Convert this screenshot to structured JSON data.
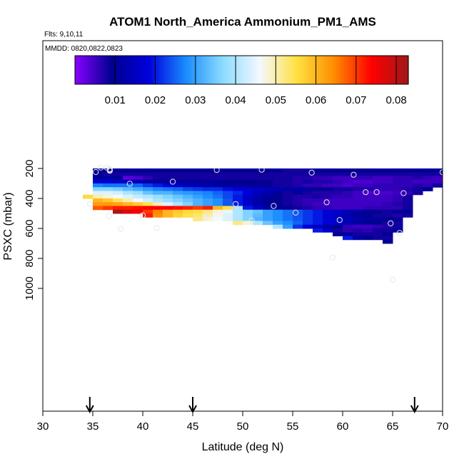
{
  "chart_data": {
    "type": "heatmap",
    "title": "ATOM1 North_America Ammonium_PM1_AMS",
    "flights_label": "Flts: 9,10,11",
    "dates_label": "MMDD: 0820,0822,0823",
    "xlabel": "Latitude (deg N)",
    "ylabel": "PSXC (mbar)",
    "xlim": [
      30,
      70
    ],
    "ylim": [
      1000,
      50
    ],
    "y_reversed": true,
    "xticks": [
      "30",
      "35",
      "40",
      "45",
      "50",
      "55",
      "60",
      "65",
      "70"
    ],
    "yticks": [
      "200",
      "400",
      "600",
      "800",
      "1000"
    ],
    "colorbar": {
      "range": [
        0.0,
        0.083
      ],
      "ticks": [
        "0.01",
        "0.02",
        "0.03",
        "0.04",
        "0.05",
        "0.06",
        "0.07",
        "0.08"
      ],
      "colormap": [
        "#8800ff",
        "#000090",
        "#0000dd",
        "#1a8cff",
        "#8cdcff",
        "#f5f8ff",
        "#ffe040",
        "#ff8c00",
        "#ff0000",
        "#a01818"
      ]
    },
    "grid": false,
    "cell_size": {
      "lat_deg": 1.0,
      "pressure_mbar": 25
    },
    "rows": [
      {
        "p": 212.5,
        "lat0": 35,
        "values": [
          0.01,
          0.01,
          0.01,
          0.01,
          0.01,
          0.01,
          0.01,
          0.01,
          0.01,
          0.01,
          0.01,
          0.01,
          0.01,
          0.01,
          0.01,
          0.01,
          0.01,
          0.01,
          0.01,
          0.008,
          0.008,
          0.008,
          0.01,
          0.01,
          0.01,
          0.01,
          0.01,
          0.01,
          0.01,
          0.01,
          0.01,
          0.01,
          0.01,
          0.01,
          0.01
        ]
      },
      {
        "p": 237.5,
        "lat0": 35,
        "values": [
          0.009,
          0.008,
          0.008,
          0.008,
          0.008,
          0.008,
          0.008,
          0.008,
          0.008,
          0.008,
          0.008,
          0.008,
          0.008,
          0.008,
          0.008,
          0.008,
          0.008,
          0.008,
          0.008,
          0.008,
          0.008,
          0.008,
          0.008,
          0.008,
          0.008,
          0.008,
          0.008,
          0.008,
          0.008,
          0.008,
          0.008,
          0.008,
          0.008,
          0.008,
          0.008
        ]
      },
      {
        "p": 262.5,
        "lat0": 35,
        "values": [
          0.01,
          0.012,
          0.01,
          0.003,
          0.004,
          0.006,
          0.008,
          0.008,
          0.008,
          0.008,
          0.008,
          0.008,
          0.008,
          0.008,
          0.008,
          0.008,
          0.008,
          0.008,
          0.008,
          0.008,
          0.007,
          0.007,
          0.006,
          0.006,
          0.005,
          0.005,
          0.006,
          0.006,
          0.005,
          0.005,
          0.006,
          0.006,
          0.007,
          0.006,
          0.005
        ]
      },
      {
        "p": 287.5,
        "lat0": 35,
        "values": [
          0.018,
          0.017,
          0.016,
          0.015,
          0.014,
          0.012,
          0.01,
          0.01,
          0.01,
          0.011,
          0.011,
          0.011,
          0.011,
          0.01,
          0.01,
          0.01,
          0.009,
          0.009,
          0.008,
          0.008,
          0.007,
          0.008,
          0.007,
          0.007,
          0.006,
          0.005,
          0.004,
          0.004,
          0.005,
          0.005,
          0.006,
          0.006,
          0.005,
          0.005,
          0.005
        ]
      },
      {
        "p": 312.5,
        "lat0": 35,
        "values": [
          0.027,
          0.026,
          0.026,
          0.026,
          0.025,
          0.022,
          0.02,
          0.018,
          0.016,
          0.014,
          0.013,
          0.012,
          0.011,
          0.01,
          0.009,
          0.009,
          0.009,
          0.009,
          0.008,
          0.008,
          0.007,
          0.006,
          0.006,
          0.005,
          0.005,
          0.004,
          0.005,
          0.005,
          0.006,
          0.006,
          0.006,
          0.006,
          0.007,
          0.006,
          0.008
        ]
      },
      {
        "p": 337.5,
        "lat0": 35,
        "values": [
          0.036,
          0.036,
          0.035,
          0.033,
          0.031,
          0.029,
          0.027,
          0.026,
          0.025,
          0.023,
          0.022,
          0.021,
          0.021,
          0.019,
          0.018,
          0.017,
          0.016,
          0.015,
          0.014,
          0.012,
          0.012,
          0.011,
          0.009,
          0.009,
          0.008,
          0.008,
          0.007,
          0.007,
          0.006,
          0.006,
          0.006,
          0.007,
          0.008,
          0.01
        ]
      },
      {
        "p": 362.5,
        "lat0": 35,
        "values": [
          0.044,
          0.044,
          0.043,
          0.04,
          0.038,
          0.034,
          0.032,
          0.032,
          0.03,
          0.029,
          0.028,
          0.027,
          0.025,
          0.023,
          0.021,
          0.018,
          0.014,
          0.012,
          0.01,
          0.008,
          0.009,
          0.008,
          0.007,
          0.007,
          0.007,
          0.006,
          0.005,
          0.004,
          0.004,
          0.004,
          0.005,
          0.006,
          0.008
        ]
      },
      {
        "p": 387.5,
        "lat0": 34,
        "values": [
          0.056,
          0.05,
          0.048,
          0.046,
          0.044,
          0.042,
          0.04,
          0.038,
          0.036,
          0.034,
          0.032,
          0.03,
          0.028,
          0.026,
          0.023,
          0.02,
          0.016,
          0.013,
          0.011,
          0.009,
          0.008,
          0.007,
          0.007,
          0.008,
          0.007,
          0.006,
          0.006,
          0.005,
          0.005,
          0.005,
          0.005,
          0.006,
          0.008
        ]
      },
      {
        "p": 412.5,
        "lat0": 35,
        "values": [
          0.06,
          0.058,
          0.054,
          0.05,
          0.046,
          0.043,
          0.04,
          0.038,
          0.036,
          0.034,
          0.032,
          0.03,
          0.028,
          0.024,
          0.02,
          0.016,
          0.012,
          0.01,
          0.009,
          0.008,
          0.007,
          0.006,
          0.006,
          0.005,
          0.005,
          0.005,
          0.005,
          0.005,
          0.005,
          0.005,
          0.006,
          0.008
        ]
      },
      {
        "p": 437.5,
        "lat0": 35,
        "values": [
          0.063,
          0.063,
          0.062,
          0.06,
          0.058,
          0.055,
          0.05,
          0.044,
          0.04,
          0.036,
          0.032,
          0.03,
          0.028,
          0.024,
          0.02,
          0.016,
          0.012,
          0.01,
          0.009,
          0.008,
          0.007,
          0.006,
          0.005,
          0.005,
          0.005,
          0.005,
          0.005,
          0.005,
          0.005,
          0.006,
          0.007,
          0.008
        ]
      },
      {
        "p": 462.5,
        "lat0": 35,
        "values": [
          0.068,
          0.07,
          0.072,
          0.072,
          0.073,
          0.074,
          0.074,
          0.074,
          0.073,
          0.072,
          0.07,
          0.072,
          0.06,
          0.055,
          0.04,
          0.02,
          0.016,
          0.012,
          0.01,
          0.009,
          0.008,
          0.007,
          0.006,
          0.006,
          0.005,
          0.005,
          0.005,
          0.006,
          0.006,
          0.006,
          0.006,
          0.008
        ]
      },
      {
        "p": 487.5,
        "lat0": 37,
        "values": [
          0.082,
          0.077,
          0.075,
          0.07,
          0.065,
          0.06,
          0.058,
          0.056,
          0.055,
          0.052,
          0.048,
          0.045,
          0.04,
          0.036,
          0.034,
          0.03,
          0.028,
          0.026,
          0.024,
          0.022,
          0.02,
          0.018,
          0.016,
          0.014,
          0.012,
          0.01,
          0.009,
          0.008,
          0.009,
          0.01
        ]
      },
      {
        "p": 512.5,
        "lat0": 40,
        "values": [
          0.072,
          0.064,
          0.06,
          0.057,
          0.055,
          0.053,
          0.05,
          0.047,
          0.044,
          0.04,
          0.036,
          0.033,
          0.03,
          0.028,
          0.026,
          0.024,
          0.022,
          0.02,
          0.017,
          0.015,
          0.012,
          0.011,
          0.01,
          0.008,
          0.008,
          0.007,
          0.008
        ]
      },
      {
        "p": 537.5,
        "lat0": 45,
        "values": [
          0.052,
          0.048,
          0.046,
          0.044,
          0.04,
          0.036,
          0.032,
          0.03,
          0.028,
          0.026,
          0.024,
          0.022,
          0.02,
          0.018,
          0.016,
          0.014,
          0.012,
          0.011,
          0.01,
          0.009,
          0.009
        ]
      },
      {
        "p": 562.5,
        "lat0": 49,
        "values": [
          0.052,
          0.048,
          0.04,
          0.034,
          0.03,
          0.028,
          0.025,
          0.022,
          0.02,
          0.018,
          0.016,
          0.013,
          0.011,
          0.01,
          0.009,
          0.008,
          0.008
        ]
      },
      {
        "p": 587.5,
        "lat0": 53,
        "values": [
          0.04,
          0.03,
          0.022,
          0.018,
          0.015,
          0.012,
          0.01,
          0.006,
          0.005,
          0.005,
          0.006,
          0.007,
          0.008
        ]
      },
      {
        "p": 612.5,
        "lat0": 57,
        "values": [
          0.02,
          0.016,
          0.008,
          0.006,
          0.007,
          0.006,
          0.008,
          0.008,
          0.01
        ]
      },
      {
        "p": 637.5,
        "lat0": 59,
        "values": [
          0.01,
          0.01,
          0.008,
          0.008,
          0.008,
          0.009
        ]
      },
      {
        "p": 662.5,
        "lat0": 60,
        "values": [
          0.02,
          0.012,
          0.01,
          0.008,
          0.008
        ]
      },
      {
        "p": 687.5,
        "lat0": 64,
        "values": [
          0.01
        ]
      }
    ],
    "flight_points": [
      {
        "lat": 35.3,
        "p": 224
      },
      {
        "lat": 35.8,
        "p": 194
      },
      {
        "lat": 36.4,
        "p": 194
      },
      {
        "lat": 36.7,
        "p": 204
      },
      {
        "lat": 36.7,
        "p": 210
      },
      {
        "lat": 36.7,
        "p": 215
      },
      {
        "lat": 38.7,
        "p": 302
      },
      {
        "lat": 43.0,
        "p": 288
      },
      {
        "lat": 47.4,
        "p": 210
      },
      {
        "lat": 51.9,
        "p": 208
      },
      {
        "lat": 56.9,
        "p": 228
      },
      {
        "lat": 61.1,
        "p": 242
      },
      {
        "lat": 70.0,
        "p": 225
      },
      {
        "lat": 62.3,
        "p": 358
      },
      {
        "lat": 63.4,
        "p": 358
      },
      {
        "lat": 66.1,
        "p": 365
      },
      {
        "lat": 58.4,
        "p": 425
      },
      {
        "lat": 49.3,
        "p": 437
      },
      {
        "lat": 53.1,
        "p": 450
      },
      {
        "lat": 55.3,
        "p": 495
      },
      {
        "lat": 34.7,
        "p": 437
      },
      {
        "lat": 36.6,
        "p": 517
      },
      {
        "lat": 40.0,
        "p": 513
      },
      {
        "lat": 46.3,
        "p": 528
      },
      {
        "lat": 50.9,
        "p": 547
      },
      {
        "lat": 59.7,
        "p": 544
      },
      {
        "lat": 64.8,
        "p": 566
      },
      {
        "lat": 41.4,
        "p": 598
      },
      {
        "lat": 37.8,
        "p": 603
      },
      {
        "lat": 65.7,
        "p": 630
      },
      {
        "lat": 59.0,
        "p": 795
      },
      {
        "lat": 65.0,
        "p": 942
      }
    ],
    "arrows_lat": [
      34.7,
      45.0,
      67.2
    ]
  }
}
